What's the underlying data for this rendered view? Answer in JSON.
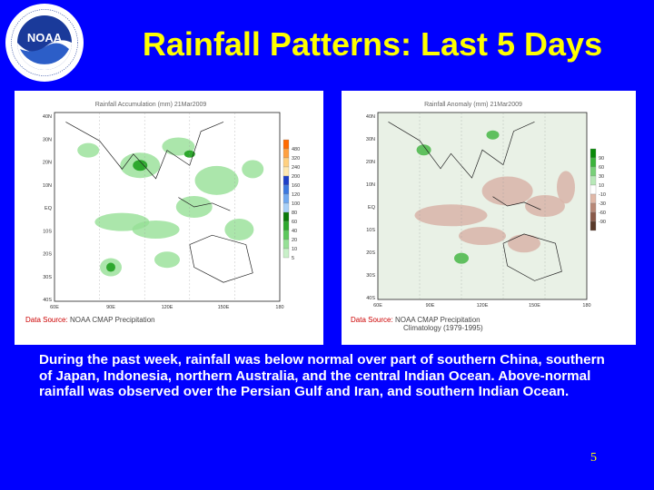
{
  "header": {
    "title": "Rainfall Patterns: Last 5 Days",
    "logo_text": "NOAA",
    "logo_ring_text": "NATIONAL OCEANIC AND ATMOSPHERIC ADMINISTRATION · U.S. DEPARTMENT OF COMMERCE"
  },
  "left_map": {
    "title": "Rainfall Accumulation (mm) 21Mar2009",
    "source_label": "Data Source:",
    "source_value": "NOAA CMAP Precipitation",
    "lat_labels": [
      "40N",
      "30N",
      "20N",
      "10N",
      "EQ",
      "10S",
      "20S",
      "30S",
      "40S"
    ],
    "lon_labels": [
      "60E",
      "90E",
      "120E",
      "150E",
      "180"
    ],
    "legend_values": [
      "480",
      "320",
      "240",
      "200",
      "160",
      "120",
      "100",
      "80",
      "60",
      "40",
      "20",
      "10",
      "5"
    ],
    "legend_colors": [
      "#ff6a00",
      "#ffa040",
      "#ffd080",
      "#ffe8b0",
      "#1e40c8",
      "#3c78e0",
      "#70a8f0",
      "#a8d0f8",
      "#0a7a0a",
      "#2ea82e",
      "#5cc85c",
      "#96e096",
      "#c8f0c8"
    ]
  },
  "right_map": {
    "title": "Rainfall Anomaly (mm) 21Mar2009",
    "source_label": "Data Source:",
    "source_value": "NOAA CMAP Precipitation",
    "source_value2": "Climatology (1979-1995)",
    "lat_labels": [
      "40N",
      "30N",
      "20N",
      "10N",
      "EQ",
      "10S",
      "20S",
      "30S",
      "40S"
    ],
    "lon_labels": [
      "60E",
      "90E",
      "120E",
      "150E",
      "180"
    ],
    "legend_values": [
      "90",
      "60",
      "30",
      "10",
      "-10",
      "-30",
      "-60",
      "-90"
    ],
    "legend_colors": [
      "#0a8a0a",
      "#3cb43c",
      "#78d078",
      "#b8e8b8",
      "#ffffff",
      "#e0b8a8",
      "#b88878",
      "#8a5a4a",
      "#5a3a2a"
    ]
  },
  "description": "During the past week, rainfall was below normal over part of southern China, southern of Japan, Indonesia, northern Australia, and the central Indian Ocean. Above-normal rainfall was observed over the Persian Gulf and Iran, and southern Indian Ocean.",
  "page_number": "5"
}
